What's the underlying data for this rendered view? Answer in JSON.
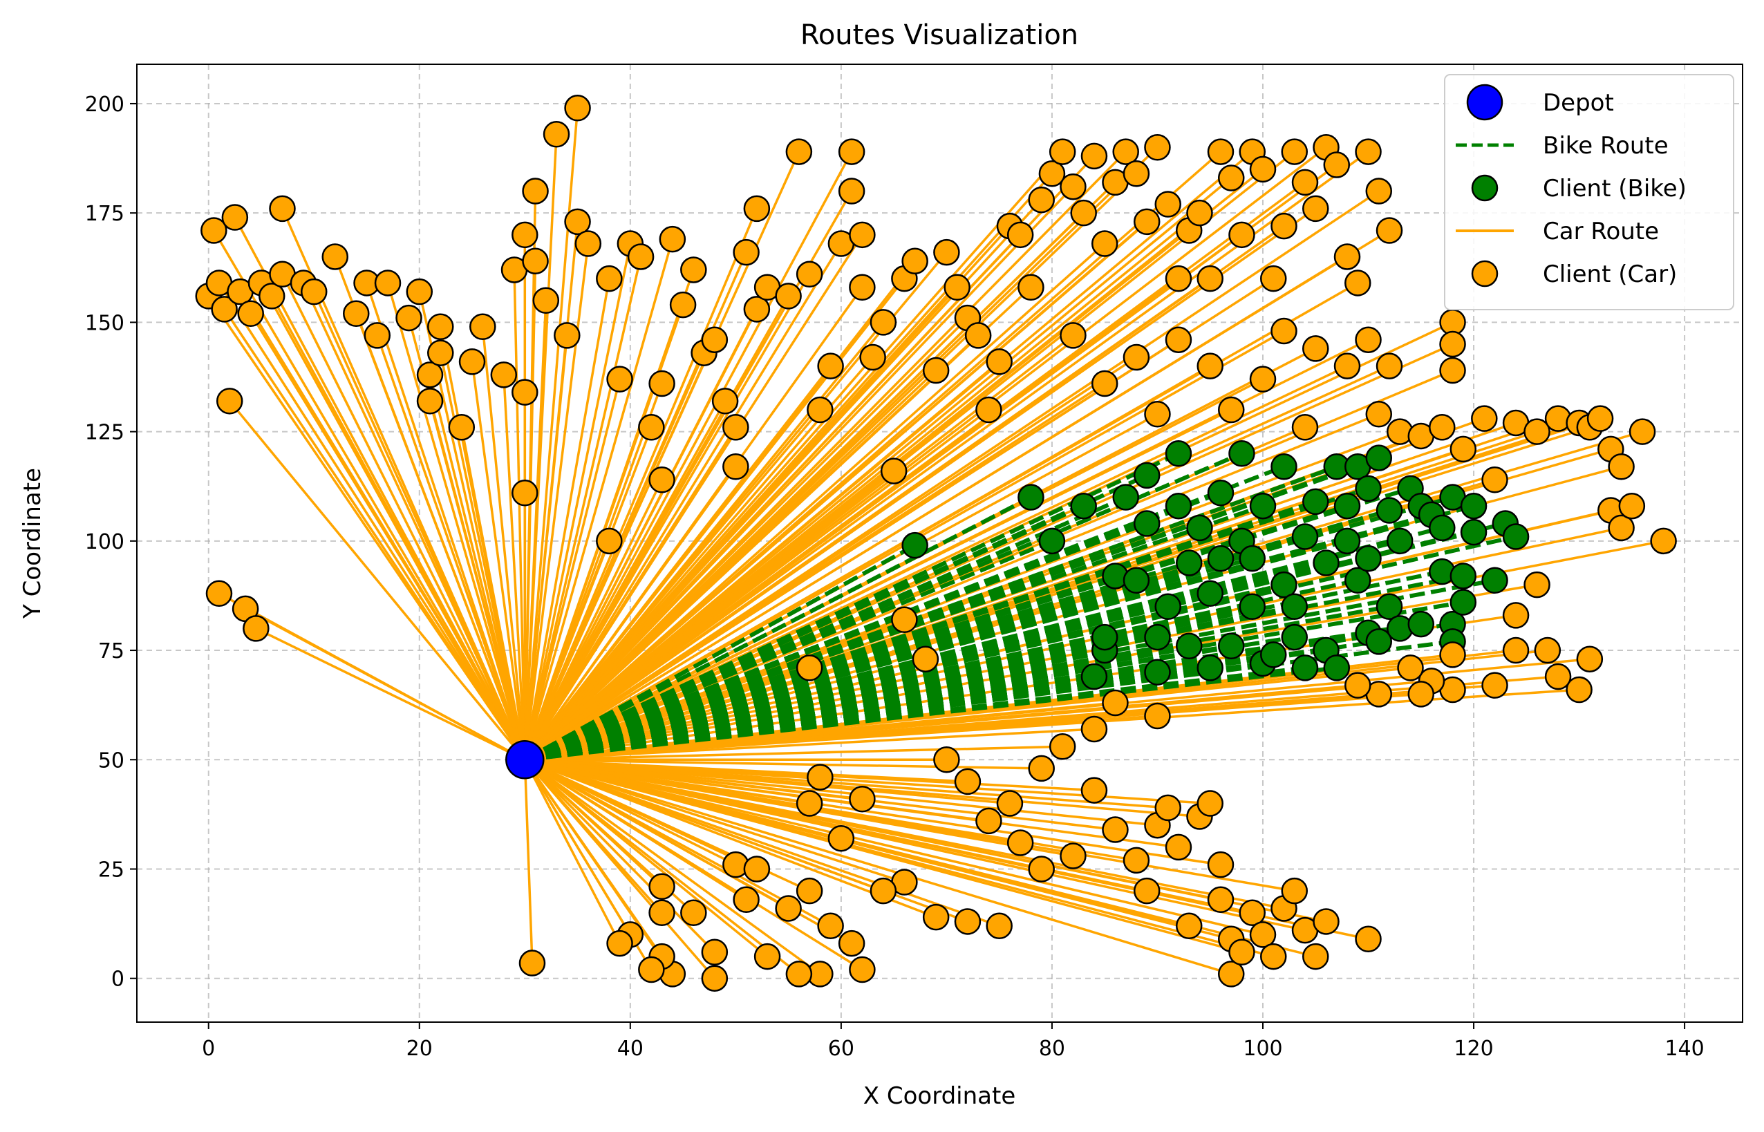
{
  "chart_data": {
    "type": "scatter",
    "title": "Routes Visualization",
    "xlabel": "X Coordinate",
    "ylabel": "Y Coordinate",
    "xlim": [
      -6.8,
      145.5
    ],
    "ylim": [
      -10,
      209
    ],
    "xticks": [
      0,
      20,
      40,
      60,
      80,
      100,
      120,
      140
    ],
    "yticks": [
      0,
      25,
      50,
      75,
      100,
      125,
      150,
      175,
      200
    ],
    "grid": true,
    "legend_position": "top-right",
    "colors": {
      "depot": "#0000ff",
      "bike": "#008000",
      "car": "#ffa500",
      "edge": "#000000",
      "grid": "#b0b0b0"
    },
    "legend": [
      {
        "key": "depot",
        "label": "Depot"
      },
      {
        "key": "bike_route",
        "label": "Bike Route"
      },
      {
        "key": "bike_client",
        "label": "Client (Bike)"
      },
      {
        "key": "car_route",
        "label": "Car Route"
      },
      {
        "key": "car_client",
        "label": "Client (Car)"
      }
    ],
    "depot": {
      "x": 30,
      "y": 50
    },
    "bike_clients": [
      [
        67,
        99
      ],
      [
        78,
        110
      ],
      [
        80,
        100
      ],
      [
        83,
        108
      ],
      [
        84,
        69
      ],
      [
        85,
        75
      ],
      [
        85,
        78
      ],
      [
        86,
        92
      ],
      [
        87,
        110
      ],
      [
        88,
        91
      ],
      [
        89,
        115
      ],
      [
        89,
        104
      ],
      [
        90,
        70
      ],
      [
        90,
        78
      ],
      [
        91,
        85
      ],
      [
        92,
        108
      ],
      [
        92,
        120
      ],
      [
        93,
        95
      ],
      [
        93,
        76
      ],
      [
        94,
        103
      ],
      [
        95,
        71
      ],
      [
        95,
        88
      ],
      [
        96,
        111
      ],
      [
        96,
        96
      ],
      [
        97,
        76
      ],
      [
        98,
        100
      ],
      [
        98,
        120
      ],
      [
        99,
        85
      ],
      [
        99,
        96
      ],
      [
        100,
        108
      ],
      [
        100,
        72
      ],
      [
        101,
        74
      ],
      [
        102,
        117
      ],
      [
        102,
        90
      ],
      [
        103,
        85
      ],
      [
        103,
        78
      ],
      [
        104,
        101
      ],
      [
        104,
        71
      ],
      [
        105,
        109
      ],
      [
        106,
        95
      ],
      [
        106,
        75
      ],
      [
        107,
        117
      ],
      [
        107,
        71
      ],
      [
        108,
        108
      ],
      [
        108,
        100
      ],
      [
        109,
        91
      ],
      [
        109,
        117
      ],
      [
        110,
        79
      ],
      [
        110,
        112
      ],
      [
        110,
        96
      ],
      [
        111,
        119
      ],
      [
        111,
        77
      ],
      [
        112,
        107
      ],
      [
        112,
        85
      ],
      [
        113,
        100
      ],
      [
        113,
        80
      ],
      [
        114,
        112
      ],
      [
        115,
        108
      ],
      [
        115,
        81
      ],
      [
        116,
        106
      ],
      [
        117,
        93
      ],
      [
        117,
        103
      ],
      [
        118,
        81
      ],
      [
        118,
        110
      ],
      [
        118,
        77
      ],
      [
        119,
        92
      ],
      [
        119,
        86
      ],
      [
        120,
        108
      ],
      [
        120,
        102
      ],
      [
        122,
        91
      ],
      [
        123,
        104
      ],
      [
        124,
        101
      ]
    ],
    "car_clients": [
      [
        0,
        156
      ],
      [
        0.5,
        171
      ],
      [
        1,
        159
      ],
      [
        1.5,
        153
      ],
      [
        2,
        132
      ],
      [
        2.5,
        174
      ],
      [
        3,
        157
      ],
      [
        4,
        152
      ],
      [
        5,
        159
      ],
      [
        6,
        156
      ],
      [
        7,
        176
      ],
      [
        7,
        161
      ],
      [
        9,
        159
      ],
      [
        10,
        157
      ],
      [
        12,
        165
      ],
      [
        14,
        152
      ],
      [
        15,
        159
      ],
      [
        16,
        147
      ],
      [
        17,
        159
      ],
      [
        19,
        151
      ],
      [
        20,
        157
      ],
      [
        21,
        138
      ],
      [
        21,
        132
      ],
      [
        22,
        143
      ],
      [
        22,
        149
      ],
      [
        24,
        126
      ],
      [
        25,
        141
      ],
      [
        26,
        149
      ],
      [
        28,
        138
      ],
      [
        29,
        162
      ],
      [
        30,
        170
      ],
      [
        30,
        134
      ],
      [
        30,
        111
      ],
      [
        31,
        180
      ],
      [
        31,
        164
      ],
      [
        32,
        155
      ],
      [
        33,
        193
      ],
      [
        34,
        147
      ],
      [
        35,
        199
      ],
      [
        35,
        173
      ],
      [
        36,
        168
      ],
      [
        38,
        100
      ],
      [
        38,
        160
      ],
      [
        39,
        137
      ],
      [
        40,
        168
      ],
      [
        41,
        165
      ],
      [
        42,
        126
      ],
      [
        43,
        114
      ],
      [
        43,
        136
      ],
      [
        44,
        169
      ],
      [
        45,
        154
      ],
      [
        46,
        162
      ],
      [
        47,
        143
      ],
      [
        48,
        146
      ],
      [
        49,
        132
      ],
      [
        50,
        126
      ],
      [
        50,
        117
      ],
      [
        51,
        166
      ],
      [
        52,
        176
      ],
      [
        52,
        153
      ],
      [
        53,
        158
      ],
      [
        55,
        156
      ],
      [
        56,
        189
      ],
      [
        57,
        161
      ],
      [
        58,
        130
      ],
      [
        59,
        140
      ],
      [
        60,
        168
      ],
      [
        61,
        189
      ],
      [
        61,
        180
      ],
      [
        62,
        170
      ],
      [
        62,
        158
      ],
      [
        63,
        142
      ],
      [
        64,
        150
      ],
      [
        65,
        116
      ],
      [
        66,
        160
      ],
      [
        67,
        164
      ],
      [
        69,
        139
      ],
      [
        70,
        166
      ],
      [
        71,
        158
      ],
      [
        72,
        151
      ],
      [
        73,
        147
      ],
      [
        74,
        130
      ],
      [
        75,
        141
      ],
      [
        76,
        172
      ],
      [
        77,
        170
      ],
      [
        78,
        158
      ],
      [
        79,
        178
      ],
      [
        80,
        184
      ],
      [
        81,
        189
      ],
      [
        82,
        181
      ],
      [
        83,
        175
      ],
      [
        84,
        188
      ],
      [
        85,
        168
      ],
      [
        86,
        182
      ],
      [
        87,
        189
      ],
      [
        88,
        184
      ],
      [
        89,
        173
      ],
      [
        90,
        190
      ],
      [
        91,
        177
      ],
      [
        92,
        160
      ],
      [
        93,
        171
      ],
      [
        94,
        175
      ],
      [
        95,
        160
      ],
      [
        96,
        189
      ],
      [
        97,
        183
      ],
      [
        98,
        170
      ],
      [
        99,
        189
      ],
      [
        100,
        185
      ],
      [
        101,
        160
      ],
      [
        102,
        172
      ],
      [
        103,
        189
      ],
      [
        104,
        182
      ],
      [
        105,
        176
      ],
      [
        106,
        190
      ],
      [
        107,
        186
      ],
      [
        108,
        165
      ],
      [
        109,
        159
      ],
      [
        110,
        189
      ],
      [
        111,
        180
      ],
      [
        112,
        171
      ],
      [
        82,
        147
      ],
      [
        85,
        136
      ],
      [
        88,
        142
      ],
      [
        90,
        129
      ],
      [
        92,
        146
      ],
      [
        95,
        140
      ],
      [
        97,
        130
      ],
      [
        100,
        137
      ],
      [
        102,
        148
      ],
      [
        104,
        126
      ],
      [
        105,
        144
      ],
      [
        108,
        140
      ],
      [
        110,
        146
      ],
      [
        111,
        129
      ],
      [
        112,
        140
      ],
      [
        113,
        125
      ],
      [
        115,
        124
      ],
      [
        117,
        126
      ],
      [
        118,
        150
      ],
      [
        118,
        145
      ],
      [
        118,
        139
      ],
      [
        119,
        121
      ],
      [
        121,
        128
      ],
      [
        122,
        114
      ],
      [
        124,
        127
      ],
      [
        126,
        125
      ],
      [
        128,
        128
      ],
      [
        130,
        127
      ],
      [
        131,
        126
      ],
      [
        132,
        128
      ],
      [
        133,
        121
      ],
      [
        134,
        117
      ],
      [
        136,
        125
      ],
      [
        133,
        107
      ],
      [
        134,
        103
      ],
      [
        135,
        108
      ],
      [
        138,
        100
      ],
      [
        126,
        90
      ],
      [
        124,
        83
      ],
      [
        124,
        75
      ],
      [
        127,
        75
      ],
      [
        128,
        69
      ],
      [
        130,
        66
      ],
      [
        131,
        73
      ],
      [
        122,
        67
      ],
      [
        118,
        66
      ],
      [
        118,
        74
      ],
      [
        116,
        68
      ],
      [
        115,
        65
      ],
      [
        114,
        71
      ],
      [
        111,
        65
      ],
      [
        109,
        67
      ],
      [
        66,
        82
      ],
      [
        68,
        73
      ],
      [
        57,
        71
      ],
      [
        86,
        63
      ],
      [
        90,
        60
      ],
      [
        84,
        57
      ],
      [
        81,
        53
      ],
      [
        79,
        48
      ],
      [
        76,
        40
      ],
      [
        74,
        36
      ],
      [
        72,
        45
      ],
      [
        70,
        50
      ],
      [
        77,
        31
      ],
      [
        79,
        25
      ],
      [
        82,
        28
      ],
      [
        84,
        43
      ],
      [
        86,
        34
      ],
      [
        88,
        27
      ],
      [
        89,
        20
      ],
      [
        90,
        35
      ],
      [
        91,
        39
      ],
      [
        92,
        30
      ],
      [
        93,
        12
      ],
      [
        94,
        37
      ],
      [
        95,
        40
      ],
      [
        96,
        26
      ],
      [
        96,
        18
      ],
      [
        97,
        9
      ],
      [
        97,
        1
      ],
      [
        98,
        6
      ],
      [
        99,
        15
      ],
      [
        100,
        10
      ],
      [
        101,
        5
      ],
      [
        102,
        16
      ],
      [
        103,
        20
      ],
      [
        104,
        11
      ],
      [
        105,
        5
      ],
      [
        106,
        13
      ],
      [
        110,
        9
      ],
      [
        75,
        12
      ],
      [
        72,
        13
      ],
      [
        69,
        14
      ],
      [
        66,
        22
      ],
      [
        64,
        20
      ],
      [
        62,
        2
      ],
      [
        61,
        8
      ],
      [
        59,
        12
      ],
      [
        58,
        1
      ],
      [
        57,
        20
      ],
      [
        56,
        1
      ],
      [
        55,
        16
      ],
      [
        53,
        5
      ],
      [
        51,
        18
      ],
      [
        48,
        0
      ],
      [
        48,
        6
      ],
      [
        46,
        15
      ],
      [
        44,
        1
      ],
      [
        43,
        5
      ],
      [
        43,
        15
      ],
      [
        42,
        2
      ],
      [
        40,
        10
      ],
      [
        39,
        8
      ],
      [
        43,
        21
      ],
      [
        50,
        26
      ],
      [
        52,
        25
      ],
      [
        57,
        40
      ],
      [
        58,
        46
      ],
      [
        60,
        32
      ],
      [
        62,
        41
      ],
      [
        30.7,
        3.5
      ],
      [
        1,
        88
      ],
      [
        3.5,
        84.5
      ],
      [
        4.5,
        80
      ]
    ]
  }
}
